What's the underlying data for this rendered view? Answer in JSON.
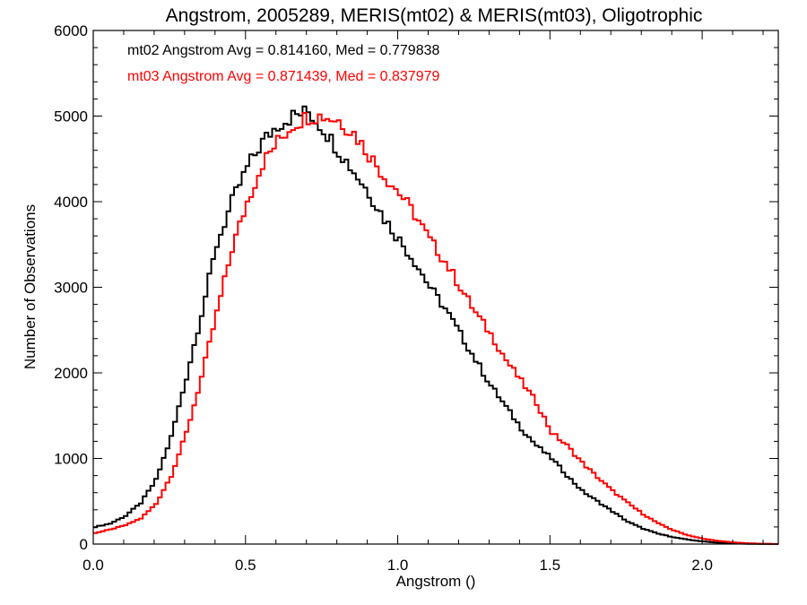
{
  "chart_data": {
    "type": "line",
    "title": "Angstrom, 2005289, MERIS(mt02) & MERIS(mt03), Oligotrophic",
    "xlabel": "Angstrom ()",
    "ylabel": "Number of Observations",
    "xlim": [
      0.0,
      2.25
    ],
    "ylim": [
      0,
      6000
    ],
    "xticks": [
      0.0,
      0.5,
      1.0,
      1.5,
      2.0
    ],
    "xtick_labels": [
      "0.0",
      "0.5",
      "1.0",
      "1.5",
      "2.0"
    ],
    "yticks": [
      0,
      1000,
      2000,
      3000,
      4000,
      5000,
      6000
    ],
    "ytick_labels": [
      "0",
      "1000",
      "2000",
      "3000",
      "4000",
      "5000",
      "6000"
    ],
    "grid": false,
    "legend_position": "top-left",
    "annotations": [
      {
        "text": "mt02 Angstrom Avg = 0.814160, Med = 0.779838",
        "color": "#000000"
      },
      {
        "text": "mt03 Angstrom Avg = 0.871439, Med = 0.837979",
        "color": "#ff0000"
      }
    ],
    "series": [
      {
        "color": "#000000",
        "x": [
          0.0,
          0.05,
          0.1,
          0.15,
          0.2,
          0.25,
          0.3,
          0.35,
          0.4,
          0.45,
          0.5,
          0.55,
          0.6,
          0.65,
          0.7,
          0.75,
          0.8,
          0.85,
          0.9,
          0.95,
          1.0,
          1.05,
          1.1,
          1.15,
          1.2,
          1.25,
          1.3,
          1.35,
          1.4,
          1.45,
          1.5,
          1.55,
          1.6,
          1.65,
          1.7,
          1.75,
          1.8,
          1.85,
          1.9,
          1.95,
          2.0,
          2.05,
          2.1,
          2.15,
          2.2,
          2.25
        ],
        "values": [
          200,
          240,
          330,
          480,
          750,
          1250,
          1950,
          2700,
          3500,
          4000,
          4400,
          4700,
          4900,
          5000,
          5050,
          4850,
          4600,
          4350,
          4100,
          3800,
          3550,
          3300,
          3000,
          2750,
          2450,
          2150,
          1850,
          1600,
          1350,
          1150,
          1000,
          800,
          620,
          500,
          380,
          260,
          180,
          120,
          80,
          50,
          30,
          15,
          8,
          3,
          1,
          0
        ]
      },
      {
        "color": "#ff0000",
        "x": [
          0.0,
          0.05,
          0.1,
          0.15,
          0.2,
          0.25,
          0.3,
          0.35,
          0.4,
          0.45,
          0.5,
          0.55,
          0.6,
          0.65,
          0.7,
          0.75,
          0.8,
          0.85,
          0.9,
          0.95,
          1.0,
          1.05,
          1.1,
          1.15,
          1.2,
          1.25,
          1.3,
          1.35,
          1.4,
          1.45,
          1.5,
          1.55,
          1.6,
          1.65,
          1.7,
          1.75,
          1.8,
          1.85,
          1.9,
          1.95,
          2.0,
          2.05,
          2.1,
          2.15,
          2.2,
          2.25
        ],
        "values": [
          130,
          170,
          220,
          300,
          470,
          800,
          1300,
          1950,
          2700,
          3450,
          4000,
          4450,
          4700,
          4900,
          5000,
          5000,
          4950,
          4800,
          4550,
          4300,
          4100,
          3850,
          3550,
          3300,
          3000,
          2700,
          2450,
          2150,
          1900,
          1650,
          1300,
          1150,
          950,
          780,
          620,
          480,
          350,
          240,
          160,
          100,
          60,
          35,
          18,
          8,
          3,
          0
        ]
      }
    ]
  }
}
